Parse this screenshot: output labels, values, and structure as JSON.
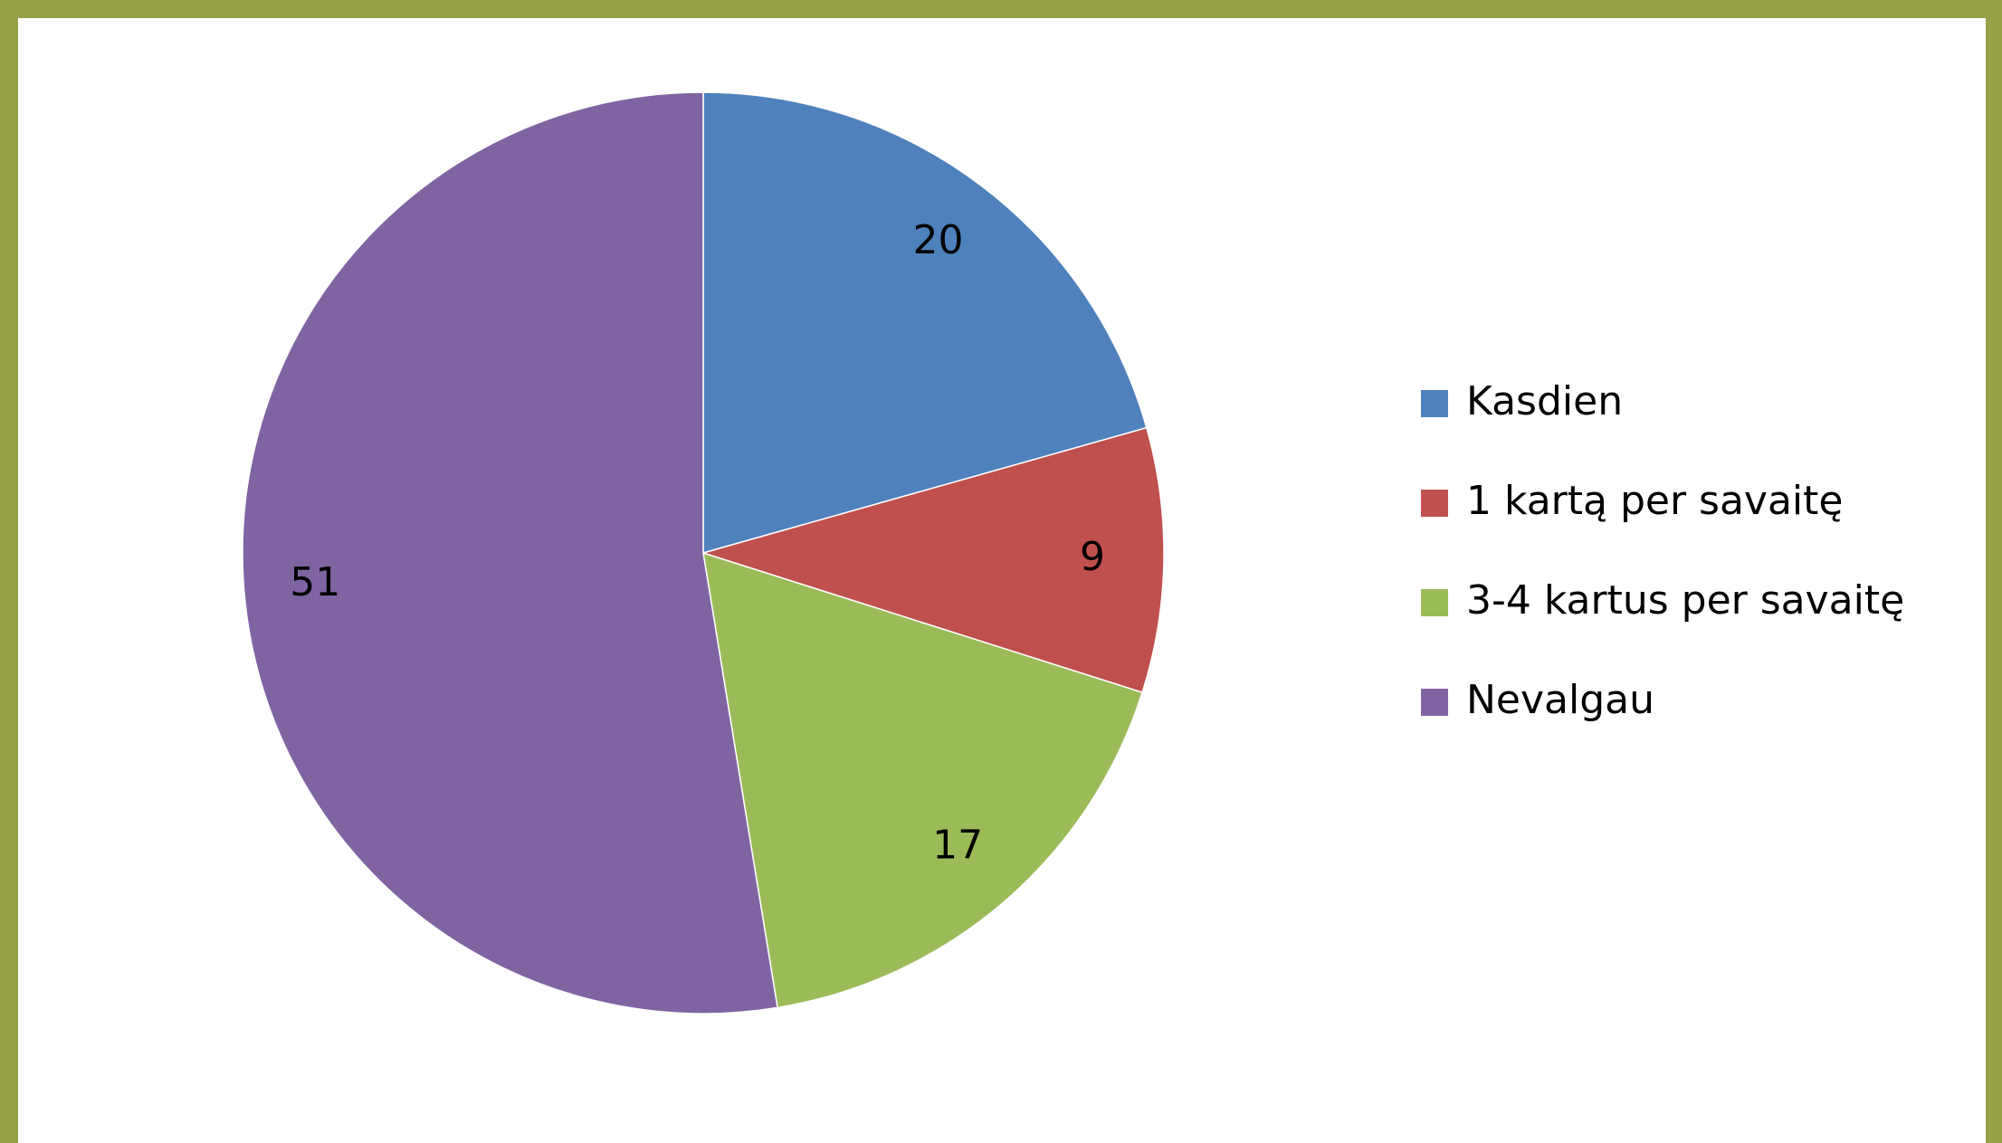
{
  "chart_data": {
    "type": "pie",
    "categories": [
      "Kasdien",
      "1 kartą per savaitę",
      "3-4 kartus per savaitę",
      "Nevalgau"
    ],
    "values": [
      20,
      9,
      17,
      51
    ],
    "colors": [
      "#4f81bd",
      "#c0504d",
      "#9bbb59",
      "#8064a2"
    ],
    "legend": "right"
  }
}
